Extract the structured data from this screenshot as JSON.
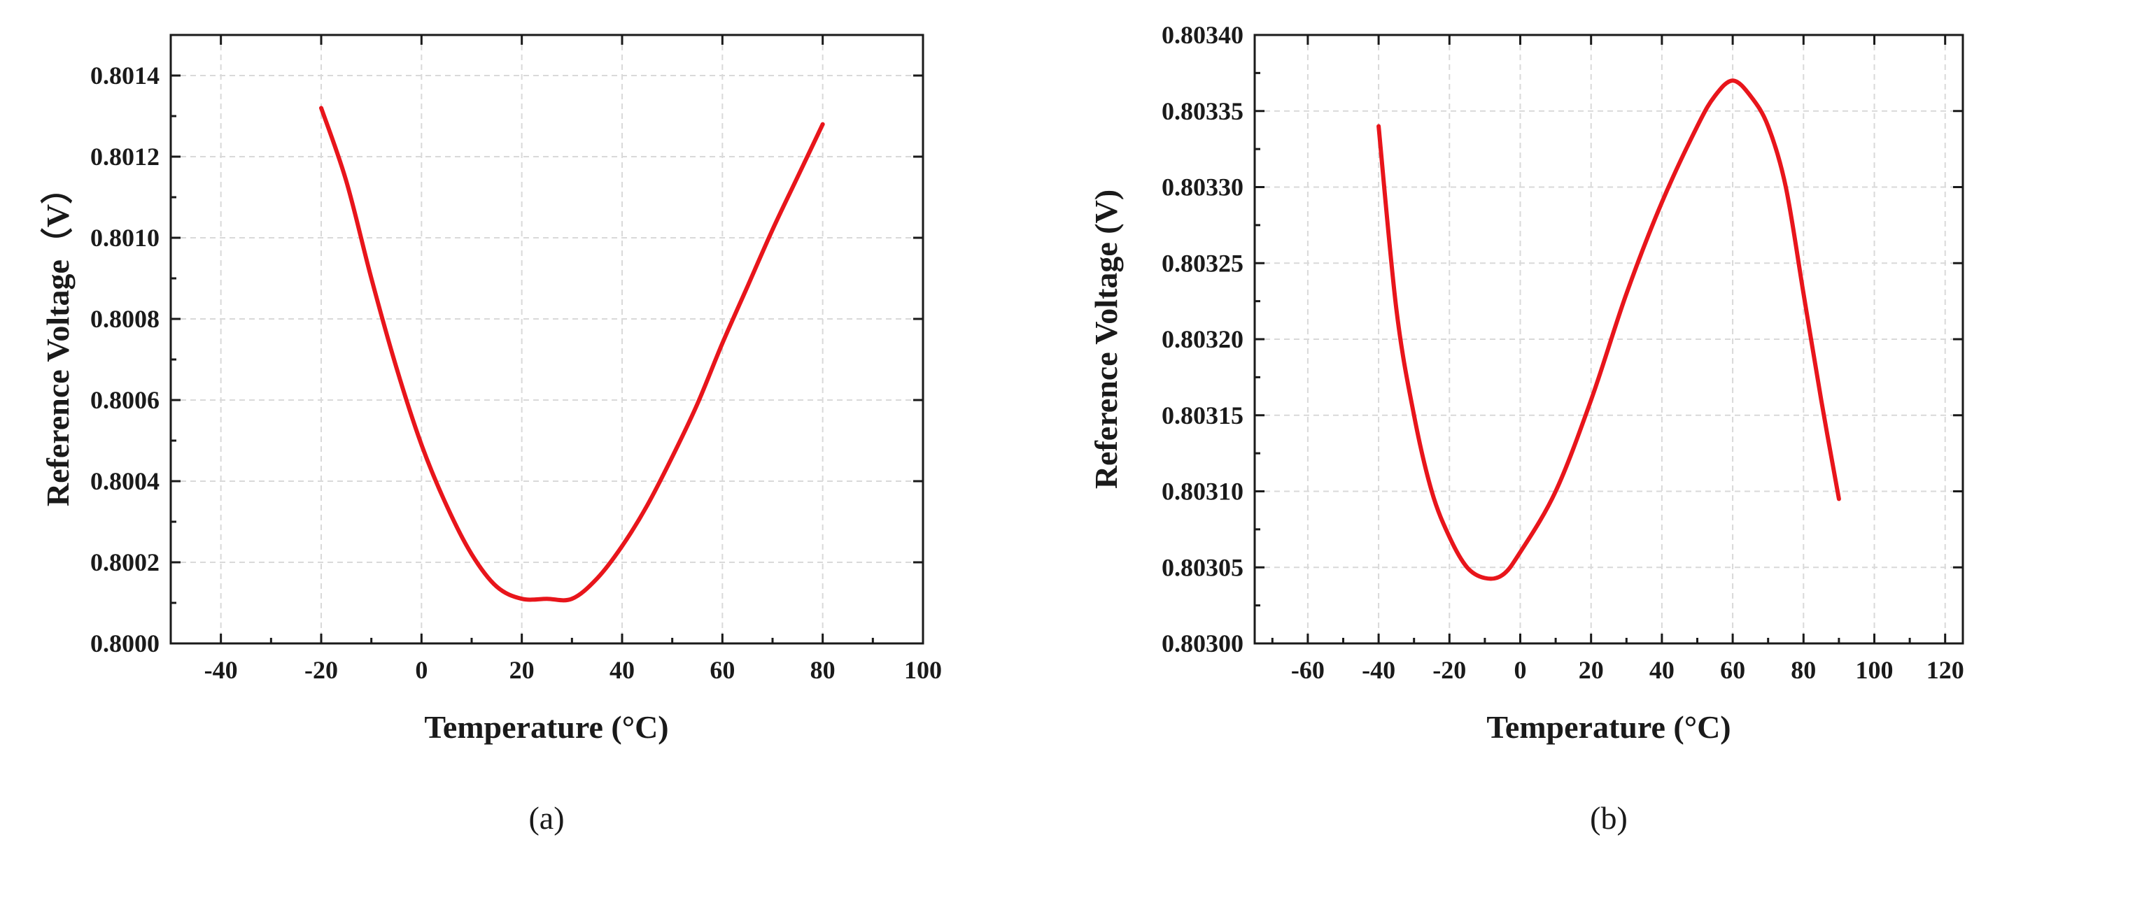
{
  "chart_data": [
    {
      "type": "line",
      "panel_label": "(a)",
      "xlabel": "Temperature (°C)",
      "ylabel": "Reference Voltage（V）",
      "xlim": [
        -50,
        100
      ],
      "ylim": [
        0.8,
        0.8015
      ],
      "xticks": [
        -40,
        -20,
        0,
        20,
        40,
        60,
        80,
        100
      ],
      "yticks": [
        "0.8000",
        "0.8002",
        "0.8004",
        "0.8006",
        "0.8008",
        "0.8010",
        "0.8012",
        "0.8014"
      ],
      "grid": true,
      "series": [
        {
          "color": "#e8151b",
          "x": [
            -20,
            -15,
            -10,
            -5,
            0,
            5,
            10,
            15,
            20,
            25,
            30,
            35,
            40,
            45,
            50,
            55,
            60,
            65,
            70,
            75,
            80
          ],
          "y": [
            0.80132,
            0.80114,
            0.8009,
            0.80068,
            0.80049,
            0.80034,
            0.80022,
            0.80014,
            0.80011,
            0.80011,
            0.80011,
            0.80016,
            0.80024,
            0.80034,
            0.80046,
            0.80059,
            0.80074,
            0.80088,
            0.80102,
            0.80115,
            0.80128
          ]
        }
      ]
    },
    {
      "type": "line",
      "panel_label": "(b)",
      "xlabel": "Temperature (°C)",
      "ylabel": "Reference Voltage (V)",
      "xlim": [
        -75,
        125
      ],
      "ylim": [
        0.803,
        0.8034
      ],
      "xticks": [
        -60,
        -40,
        -20,
        0,
        20,
        40,
        60,
        80,
        100,
        120
      ],
      "yticks": [
        "0.80300",
        "0.80305",
        "0.80310",
        "0.80315",
        "0.80320",
        "0.80325",
        "0.80330",
        "0.80335",
        "0.80340"
      ],
      "grid": true,
      "series": [
        {
          "color": "#e8151b",
          "x": [
            -40,
            -35,
            -30,
            -25,
            -20,
            -15,
            -10,
            -5,
            0,
            10,
            20,
            30,
            40,
            50,
            55,
            60,
            65,
            70,
            75,
            80,
            85,
            90
          ],
          "y": [
            0.80334,
            0.80322,
            0.80315,
            0.8031,
            0.80307,
            0.80305,
            0.803043,
            0.803045,
            0.80306,
            0.8031,
            0.80316,
            0.80323,
            0.80329,
            0.80334,
            0.80336,
            0.80337,
            0.80336,
            0.80334,
            0.8033,
            0.80323,
            0.80316,
            0.803095
          ]
        }
      ]
    }
  ]
}
